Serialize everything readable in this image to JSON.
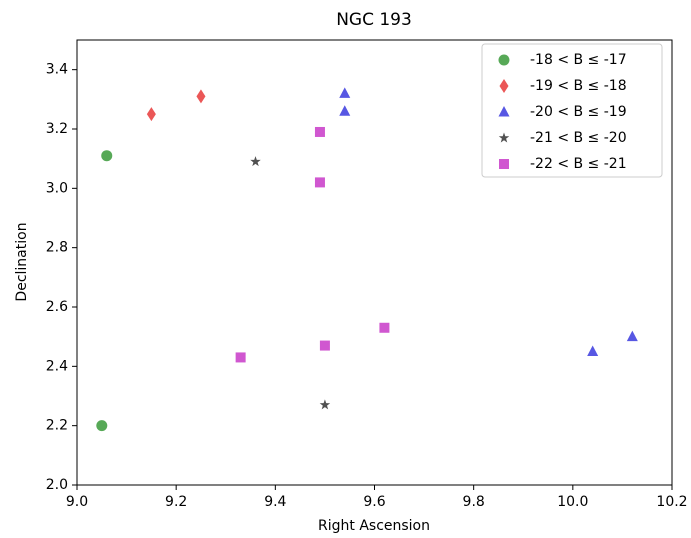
{
  "chart_data": {
    "type": "scatter",
    "title": "NGC 193",
    "x_label": "Right Ascension",
    "y_label": "Declination",
    "series": [
      {
        "name": "-18 < B ≤ -17",
        "color": "#3a9a3a",
        "marker": "circle",
        "x": [
          9.06,
          9.05
        ],
        "y": [
          3.11,
          2.2
        ]
      },
      {
        "name": "-19 < B ≤ -18",
        "color": "#e83a3a",
        "marker": "diamond",
        "x": [
          9.15,
          9.25
        ],
        "y": [
          3.25,
          3.31
        ]
      },
      {
        "name": "-20 < B ≤ -19",
        "color": "#3a3ade",
        "marker": "triangle",
        "x": [
          9.54,
          9.54,
          10.04,
          10.12
        ],
        "y": [
          3.32,
          3.26,
          2.45,
          2.5
        ]
      },
      {
        "name": "-21 < B ≤ -20",
        "color": "#333333",
        "marker": "star",
        "x": [
          9.36,
          9.5
        ],
        "y": [
          3.09,
          2.27
        ]
      },
      {
        "name": "-22 < B ≤ -21",
        "color": "#c83ac8",
        "marker": "square",
        "x": [
          9.49,
          9.49,
          9.33,
          9.5,
          9.62
        ],
        "y": [
          3.19,
          3.02,
          2.43,
          2.47,
          2.53
        ]
      }
    ],
    "xlim": [
      9.0,
      10.2
    ],
    "ylim": [
      2.0,
      3.5
    ],
    "xticks": [
      {
        "value": 9,
        "label": "9.0"
      },
      9.2,
      9.4,
      9.6,
      9.8,
      {
        "value": 10,
        "label": "10.0"
      },
      10.2
    ],
    "yticks": [
      {
        "value": 2,
        "label": "2.0"
      },
      2.2,
      2.4,
      2.6,
      2.8,
      {
        "value": 3,
        "label": "3.0"
      },
      3.2,
      3.4
    ],
    "legend": "upper right",
    "grid": false
  }
}
